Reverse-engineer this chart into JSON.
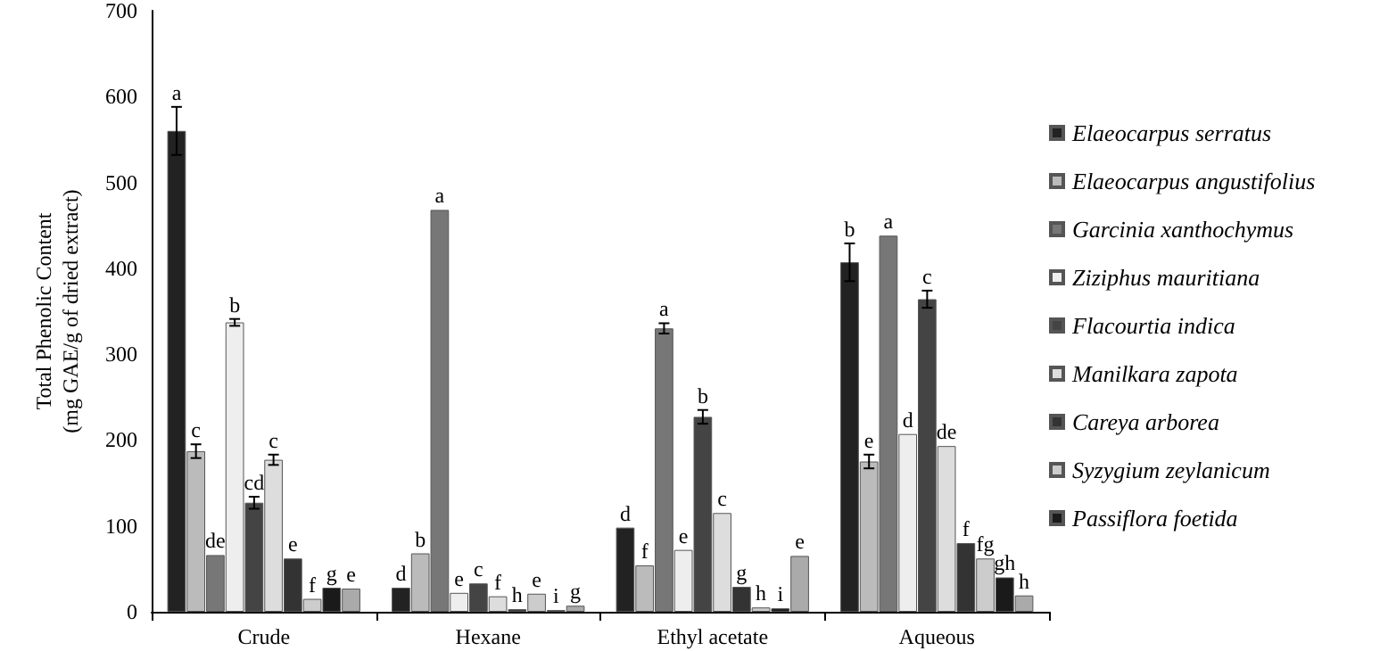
{
  "chart_data": {
    "type": "bar",
    "ylabel": "Total Phenolic Content\n(mg GAE/g of dried extract)",
    "categories": [
      "Crude",
      "Hexane",
      "Ethyl acetate",
      "Aqueous"
    ],
    "ylim": [
      0,
      700
    ],
    "yticks": [
      0,
      100,
      200,
      300,
      400,
      500,
      600,
      700
    ],
    "grid": false,
    "legend": "right",
    "series": [
      {
        "name": "Elaeocarpus serratus",
        "color": "#222222",
        "values": [
          560,
          28,
          98,
          407
        ],
        "errors": [
          28,
          null,
          null,
          22
        ],
        "value_labels": [
          "a",
          "d",
          "d",
          "b"
        ]
      },
      {
        "name": "Elaeocarpus angustifolius",
        "color": "#bbbbbb",
        "values": [
          187,
          68,
          54,
          175
        ],
        "errors": [
          8,
          null,
          null,
          8
        ],
        "value_labels": [
          "c",
          "b",
          "f",
          "e"
        ]
      },
      {
        "name": "Garcinia xanthochymus",
        "color": "#777777",
        "values": [
          66,
          468,
          330,
          438
        ],
        "errors": [
          null,
          null,
          6,
          null
        ],
        "value_labels": [
          "de",
          "a",
          "a",
          "a"
        ]
      },
      {
        "name": "Ziziphus mauritiana",
        "color": "#eeeeee",
        "values": [
          337,
          22,
          72,
          207
        ],
        "errors": [
          4,
          null,
          null,
          null
        ],
        "value_labels": [
          "b",
          "e",
          "e",
          "d"
        ]
      },
      {
        "name": "Flacourtia indica",
        "color": "#444444",
        "values": [
          127,
          33,
          227,
          364
        ],
        "errors": [
          7,
          null,
          8,
          10
        ],
        "value_labels": [
          "cd",
          "c",
          "b",
          "c"
        ]
      },
      {
        "name": "Manilkara zapota",
        "color": "#dddddd",
        "values": [
          177,
          18,
          115,
          193
        ],
        "errors": [
          6,
          null,
          null,
          null
        ],
        "value_labels": [
          "c",
          "f",
          "c",
          "de"
        ]
      },
      {
        "name": "Careya arborea",
        "color": "#333333",
        "values": [
          62,
          3,
          29,
          80
        ],
        "value_labels": [
          "e",
          "h",
          "g",
          "f"
        ]
      },
      {
        "name": "Syzygium zeylanicum",
        "color": "#cccccc",
        "values": [
          15,
          21,
          5,
          62
        ],
        "value_labels": [
          "f",
          "e",
          "h",
          "fg"
        ]
      },
      {
        "name": "Passiflora foetida",
        "color": "#1a1a1a",
        "values": [
          28,
          2,
          4,
          40
        ],
        "value_labels": [
          "g",
          "i",
          "i",
          "gh"
        ]
      },
      {
        "color": "#aaaaaa",
        "values": [
          27,
          7,
          65,
          19
        ],
        "value_labels": [
          "e",
          "g",
          "e",
          "h"
        ]
      }
    ]
  }
}
